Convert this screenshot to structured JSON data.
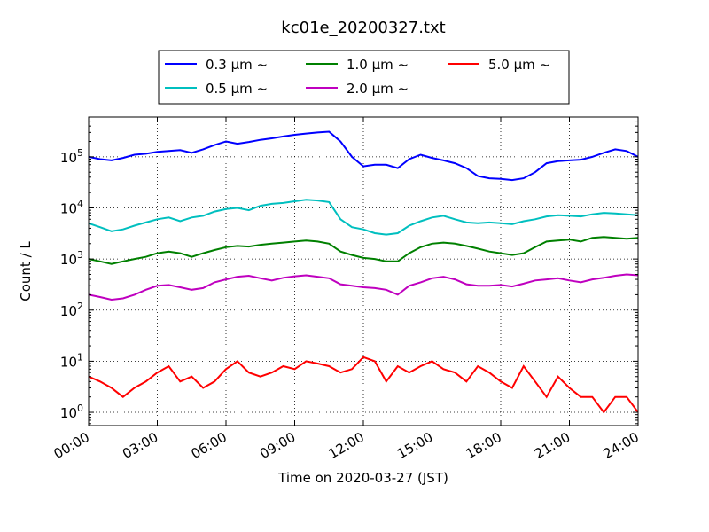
{
  "chart_data": {
    "type": "line",
    "title": "kc01e_20200327.txt",
    "xlabel": "Time on 2020-03-27 (JST)",
    "ylabel": "Count / L",
    "y_scale": "log",
    "ylim": [
      0.55,
      600000
    ],
    "xlim": [
      "00:00",
      "24:00"
    ],
    "grid": true,
    "legend_position": "top-center",
    "x_tick_labels": [
      "00:00",
      "03:00",
      "06:00",
      "09:00",
      "12:00",
      "15:00",
      "18:00",
      "21:00",
      "24:00"
    ],
    "y_ticks": [
      {
        "value": 1,
        "mantissa": "10",
        "exp": "0"
      },
      {
        "value": 10,
        "mantissa": "10",
        "exp": "1"
      },
      {
        "value": 100,
        "mantissa": "10",
        "exp": "2"
      },
      {
        "value": 1000,
        "mantissa": "10",
        "exp": "3"
      },
      {
        "value": 10000,
        "mantissa": "10",
        "exp": "4"
      },
      {
        "value": 100000,
        "mantissa": "10",
        "exp": "5"
      }
    ],
    "x_hours": [
      0,
      0.5,
      1,
      1.5,
      2,
      2.5,
      3,
      3.5,
      4,
      4.5,
      5,
      5.5,
      6,
      6.5,
      7,
      7.5,
      8,
      8.5,
      9,
      9.5,
      10,
      10.5,
      11,
      11.5,
      12,
      12.5,
      13,
      13.5,
      14,
      14.5,
      15,
      15.5,
      16,
      16.5,
      17,
      17.5,
      18,
      18.5,
      19,
      19.5,
      20,
      20.5,
      21,
      21.5,
      22,
      22.5,
      23,
      23.5,
      24
    ],
    "series": [
      {
        "name": "0.3 μm ~",
        "color": "#0000ff",
        "values": [
          100000,
          90000,
          85000,
          95000,
          110000,
          115000,
          125000,
          130000,
          135000,
          120000,
          140000,
          170000,
          200000,
          180000,
          195000,
          215000,
          230000,
          250000,
          270000,
          285000,
          300000,
          310000,
          200000,
          100000,
          65000,
          70000,
          70000,
          60000,
          90000,
          110000,
          95000,
          85000,
          75000,
          60000,
          42000,
          38000,
          37000,
          35000,
          38000,
          50000,
          75000,
          82000,
          85000,
          88000,
          100000,
          120000,
          140000,
          130000,
          100000
        ]
      },
      {
        "name": "0.5 μm ~",
        "color": "#00bfbf",
        "values": [
          5000,
          4200,
          3500,
          3800,
          4500,
          5200,
          6000,
          6500,
          5500,
          6500,
          7000,
          8500,
          9500,
          10000,
          9000,
          11000,
          12000,
          12500,
          13500,
          14500,
          14000,
          13000,
          6000,
          4200,
          3800,
          3200,
          3000,
          3200,
          4500,
          5500,
          6500,
          7000,
          6000,
          5200,
          5000,
          5200,
          5000,
          4800,
          5500,
          6000,
          6800,
          7200,
          7000,
          6800,
          7500,
          8000,
          7800,
          7500,
          7200
        ]
      },
      {
        "name": "1.0 μm ~",
        "color": "#008000",
        "values": [
          1000,
          900,
          800,
          900,
          1000,
          1100,
          1300,
          1400,
          1300,
          1100,
          1300,
          1500,
          1700,
          1800,
          1750,
          1900,
          2000,
          2100,
          2200,
          2300,
          2200,
          2000,
          1400,
          1200,
          1050,
          1000,
          900,
          900,
          1300,
          1700,
          2000,
          2100,
          2000,
          1800,
          1600,
          1400,
          1300,
          1200,
          1300,
          1700,
          2200,
          2300,
          2400,
          2200,
          2600,
          2700,
          2600,
          2500,
          2600
        ]
      },
      {
        "name": "2.0 μm ~",
        "color": "#bf00bf",
        "values": [
          200,
          180,
          160,
          170,
          200,
          250,
          300,
          310,
          280,
          250,
          270,
          350,
          400,
          450,
          470,
          420,
          380,
          430,
          460,
          480,
          450,
          420,
          320,
          300,
          280,
          270,
          250,
          200,
          300,
          350,
          420,
          450,
          400,
          320,
          300,
          300,
          310,
          290,
          330,
          380,
          400,
          420,
          380,
          350,
          400,
          430,
          470,
          500,
          480
        ]
      },
      {
        "name": "5.0 μm ~",
        "color": "#ff0000",
        "values": [
          5,
          4,
          3,
          2,
          3,
          4,
          6,
          8,
          4,
          5,
          3,
          4,
          7,
          10,
          6,
          5,
          6,
          8,
          7,
          10,
          9,
          8,
          6,
          7,
          12,
          10,
          4,
          8,
          6,
          8,
          10,
          7,
          6,
          4,
          8,
          6,
          4,
          3,
          8,
          4,
          2,
          5,
          3,
          2,
          2,
          1,
          2,
          2,
          1
        ]
      }
    ]
  }
}
